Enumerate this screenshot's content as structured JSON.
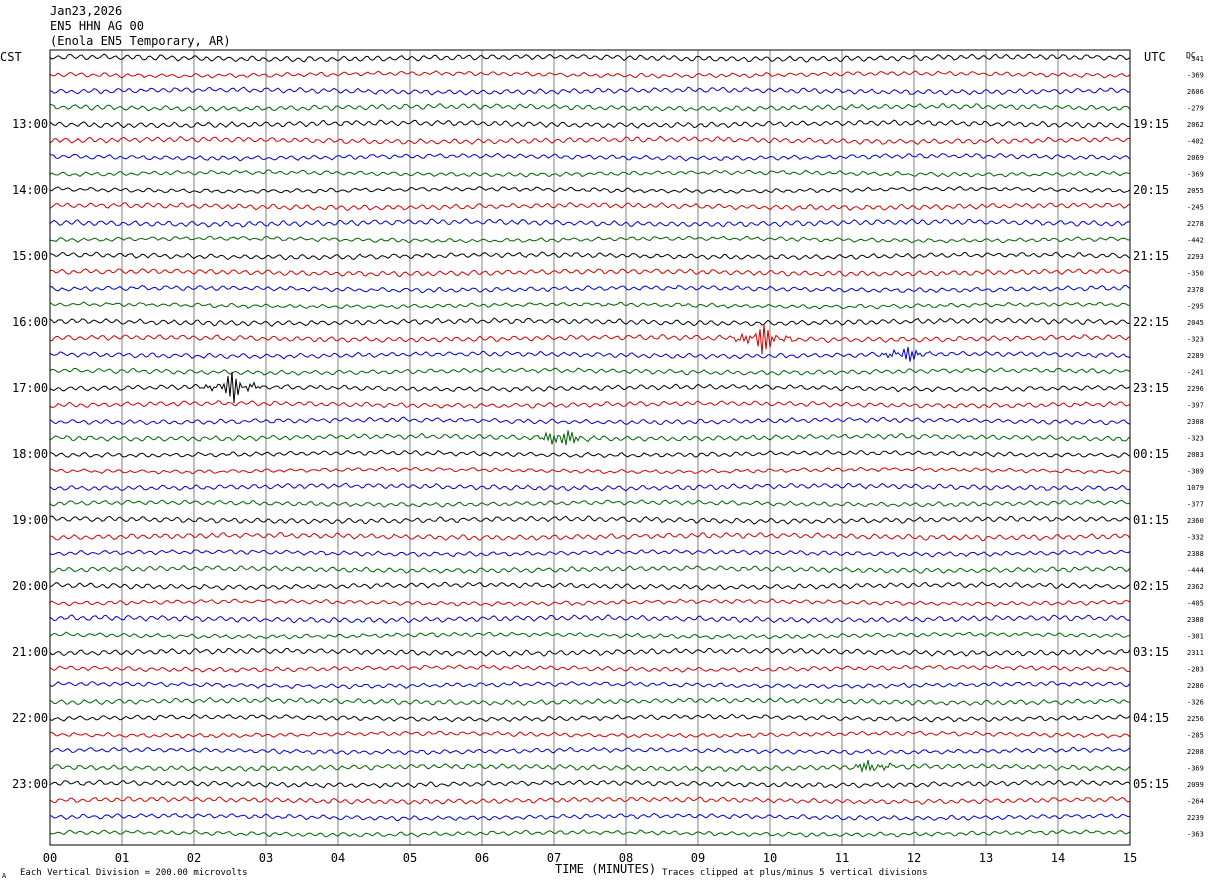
{
  "header": {
    "date": "Jan23,2026",
    "station": "EN5 HHN AG 00",
    "location": "(Enola EN5 Temporary, AR)"
  },
  "left_timezone": "CST",
  "right_timezone": "UTC",
  "dc_label": "DC",
  "footer": {
    "scale_note": "Each Vertical Division = 200.00 microvolts",
    "clip_note": "Traces clipped at plus/minus 5 vertical divisions",
    "corner_mark": "A"
  },
  "colors": {
    "black": "#000000",
    "red": "#d40000",
    "blue": "#0000cc",
    "green": "#006400",
    "grid": "#808080"
  },
  "chart_data": {
    "type": "line",
    "title": "",
    "xlabel": "TIME (MINUTES)",
    "xlim": [
      0,
      15
    ],
    "x_ticks": [
      "00",
      "01",
      "02",
      "03",
      "04",
      "05",
      "06",
      "07",
      "08",
      "09",
      "10",
      "11",
      "12",
      "13",
      "14",
      "15"
    ],
    "trace_count": 48,
    "trace_color_cycle": [
      "black",
      "red",
      "blue",
      "green"
    ],
    "left_hour_labels": [
      "13:00",
      "14:00",
      "15:00",
      "16:00",
      "17:00",
      "18:00",
      "19:00",
      "20:00",
      "21:00",
      "22:00",
      "23:00"
    ],
    "right_hour_labels": [
      "19:15",
      "20:15",
      "21:15",
      "22:15",
      "23:15",
      "00:15",
      "01:15",
      "02:15",
      "03:15",
      "04:15",
      "05:15"
    ],
    "dc_offsets": [
      "-341",
      "-369",
      "2606",
      "-279",
      "2062",
      "-402",
      "2069",
      "-369",
      "2055",
      "-245",
      "2278",
      "-442",
      "2293",
      "-350",
      "2378",
      "-295",
      "2045",
      "-323",
      "2289",
      "-241",
      "2296",
      "-397",
      "2308",
      "-323",
      "2083",
      "-389",
      "1079",
      "-377",
      "2360",
      "-332",
      "2388",
      "-444",
      "2362",
      "-405",
      "2388",
      "-301",
      "2311",
      "-283",
      "2286",
      "-326",
      "2256",
      "-285",
      "2208",
      "-369",
      "2099",
      "-264",
      "2239",
      "-363"
    ],
    "events": [
      {
        "trace": 17,
        "minute": 9.88,
        "amplitude": 18
      },
      {
        "trace": 18,
        "minute": 11.88,
        "amplitude": 10
      },
      {
        "trace": 20,
        "minute": 2.55,
        "amplitude": 17
      },
      {
        "trace": 23,
        "minute": 7.1,
        "amplitude": 14
      },
      {
        "trace": 43,
        "minute": 11.4,
        "amplitude": 8
      }
    ]
  }
}
